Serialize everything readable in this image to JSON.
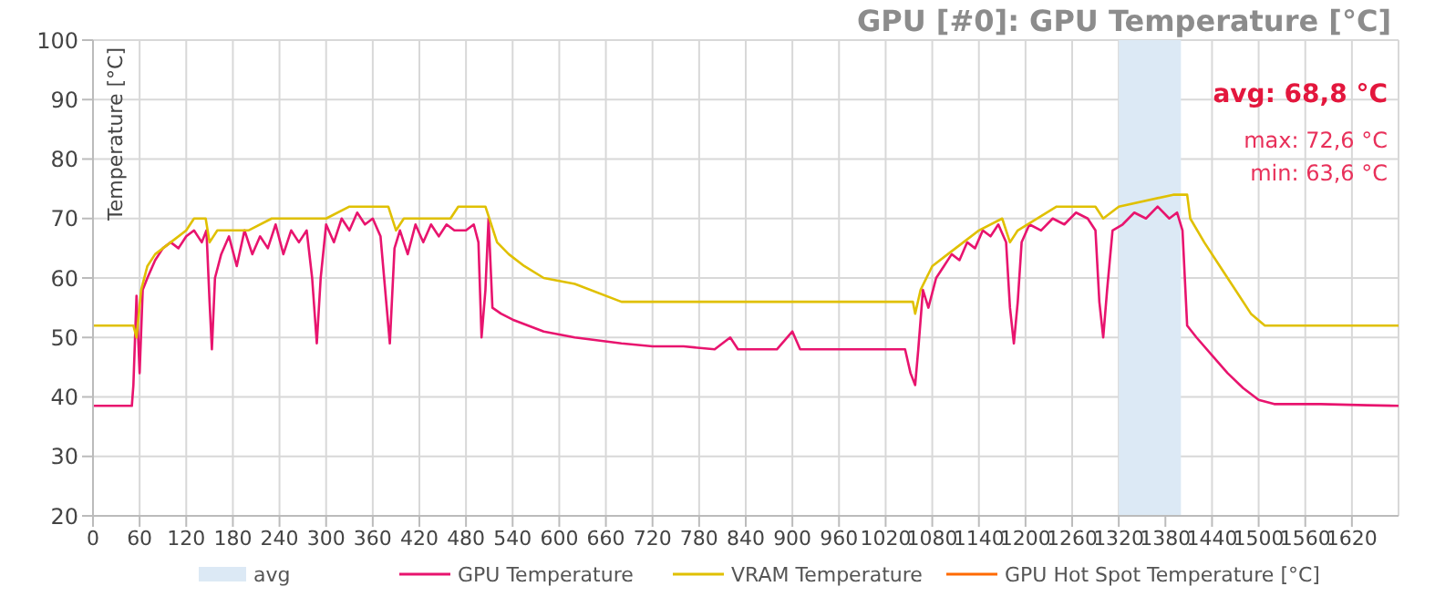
{
  "chart_data": {
    "type": "line",
    "title": "GPU [#0]: GPU Temperature [°C]",
    "ylabel": "Temperature [°C]",
    "annotations": [
      "avg: 68,8 °C",
      "max: 72,6 °C",
      "min: 63,6 °C"
    ],
    "xlim": [
      0,
      1680
    ],
    "xticks": [
      0,
      60,
      120,
      180,
      240,
      300,
      360,
      420,
      480,
      540,
      600,
      660,
      720,
      780,
      840,
      900,
      960,
      1020,
      1080,
      1140,
      1200,
      1260,
      1320,
      1380,
      1440,
      1500,
      1560,
      1620
    ],
    "ylim": [
      20,
      100
    ],
    "yticks": [
      20,
      30,
      40,
      50,
      60,
      70,
      80,
      90,
      100
    ],
    "grid": true,
    "legend": "bottom",
    "marker": "none",
    "line_style": "solid",
    "bands": [
      {
        "axis": "x",
        "from": 1320,
        "to": 1400,
        "label": "avg",
        "color": "#dce9f5"
      }
    ],
    "series": [
      {
        "name": "GPU Temperature",
        "color": "#e8146e",
        "x": [
          0,
          50,
          52,
          56,
          60,
          64,
          70,
          80,
          90,
          100,
          110,
          120,
          130,
          140,
          146,
          150,
          153,
          157,
          165,
          175,
          185,
          195,
          205,
          215,
          225,
          235,
          245,
          255,
          265,
          275,
          282,
          288,
          293,
          300,
          310,
          320,
          330,
          340,
          350,
          360,
          370,
          378,
          382,
          388,
          395,
          405,
          415,
          425,
          435,
          445,
          455,
          465,
          480,
          490,
          496,
          500,
          505,
          509,
          514,
          525,
          540,
          560,
          580,
          600,
          620,
          650,
          680,
          720,
          760,
          800,
          820,
          830,
          880,
          900,
          910,
          960,
          1000,
          1045,
          1052,
          1058,
          1062,
          1068,
          1075,
          1085,
          1095,
          1105,
          1115,
          1125,
          1135,
          1145,
          1155,
          1165,
          1175,
          1180,
          1185,
          1190,
          1195,
          1205,
          1220,
          1235,
          1250,
          1265,
          1280,
          1290,
          1295,
          1300,
          1305,
          1312,
          1325,
          1340,
          1355,
          1370,
          1385,
          1395,
          1402,
          1408,
          1420,
          1440,
          1460,
          1480,
          1500,
          1520,
          1580,
          1640,
          1680
        ],
        "values": [
          38.5,
          38.5,
          42,
          57,
          44,
          58,
          60,
          63,
          65,
          66,
          65,
          67,
          68,
          66,
          68,
          56,
          48,
          60,
          64,
          67,
          62,
          68,
          64,
          67,
          65,
          69,
          64,
          68,
          66,
          68,
          60,
          49,
          60,
          69,
          66,
          70,
          68,
          71,
          69,
          70,
          67,
          55,
          49,
          65,
          68,
          64,
          69,
          66,
          69,
          67,
          69,
          68,
          68,
          69,
          66,
          50,
          58,
          70,
          55,
          54,
          53,
          52,
          51,
          50.5,
          50,
          49.5,
          49,
          48.5,
          48.5,
          48,
          50,
          48,
          48,
          51,
          48,
          48,
          48,
          48,
          44,
          42,
          48,
          58,
          55,
          60,
          62,
          64,
          63,
          66,
          65,
          68,
          67,
          69,
          66,
          55,
          49,
          56,
          66,
          69,
          68,
          70,
          69,
          71,
          70,
          68,
          56,
          50,
          58,
          68,
          69,
          71,
          70,
          72,
          70,
          71,
          68,
          52,
          50,
          47,
          44,
          41.5,
          39.5,
          38.8,
          38.8,
          38.6,
          38.5
        ]
      },
      {
        "name": "VRAM Temperature",
        "color": "#e0c000",
        "x": [
          0,
          52,
          56,
          62,
          70,
          80,
          100,
          120,
          130,
          145,
          150,
          160,
          200,
          230,
          300,
          330,
          380,
          390,
          400,
          460,
          470,
          505,
          510,
          520,
          535,
          555,
          580,
          620,
          680,
          1055,
          1058,
          1065,
          1080,
          1100,
          1120,
          1140,
          1170,
          1180,
          1190,
          1240,
          1290,
          1300,
          1320,
          1390,
          1408,
          1412,
          1430,
          1450,
          1470,
          1490,
          1508,
          1680
        ],
        "values": [
          52,
          52,
          50,
          58,
          62,
          64,
          66,
          68,
          70,
          70,
          66,
          68,
          68,
          70,
          70,
          72,
          72,
          68,
          70,
          70,
          72,
          72,
          70,
          66,
          64,
          62,
          60,
          59,
          56,
          56,
          54,
          58,
          62,
          64,
          66,
          68,
          70,
          66,
          68,
          72,
          72,
          70,
          72,
          74,
          74,
          70,
          66,
          62,
          58,
          54,
          52,
          52
        ]
      },
      {
        "name": "GPU Hot Spot Temperature [°C]",
        "color": "#ff6a00"
      }
    ]
  }
}
